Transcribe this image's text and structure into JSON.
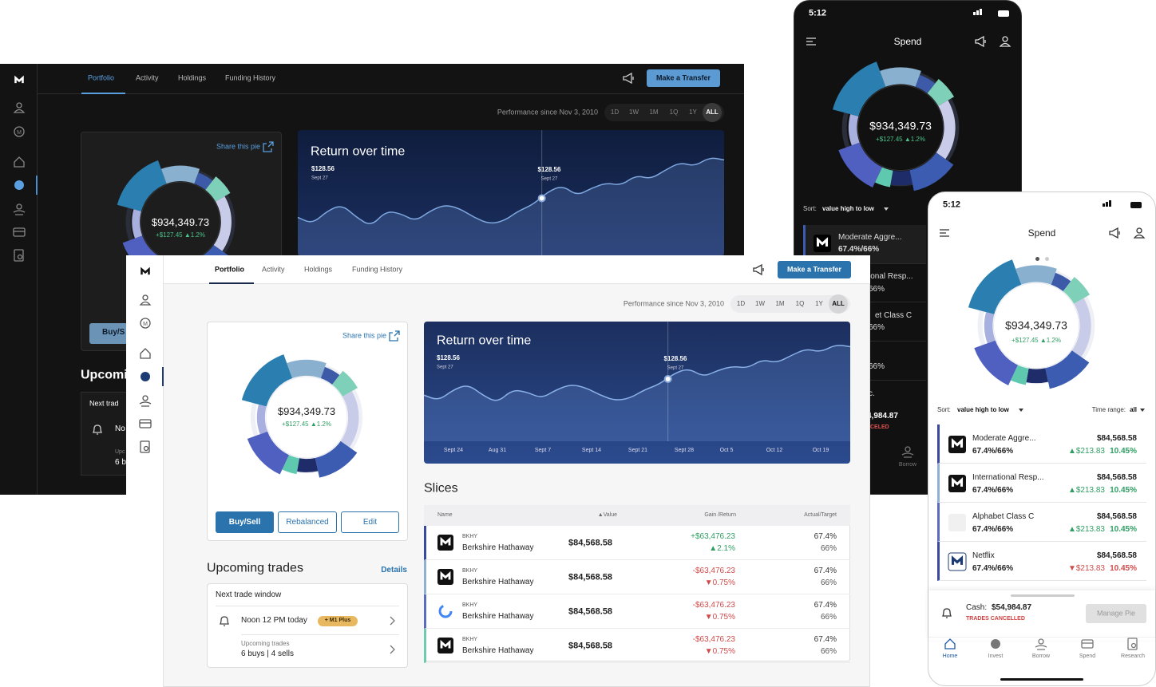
{
  "dark_desktop": {
    "nav": [
      "Portfolio",
      "Activity",
      "Holdings",
      "Funding History"
    ],
    "transfer_button": "Make a Transfer",
    "performance_label": "Performance since Nov 3, 2010",
    "ranges": [
      "1D",
      "1W",
      "1M",
      "1Q",
      "1Y",
      "ALL"
    ],
    "share_link": "Share this pie",
    "balance": "$934,349.73",
    "change": "+$127.45 ▲1.2%",
    "chart_title": "Return over time",
    "chart_points": [
      {
        "value": "$128.56",
        "date": "Sept 27"
      },
      {
        "value": "$128.56",
        "date": "Sept 27"
      }
    ],
    "buy_sell": "Buy/S",
    "upcoming_heading": "Upcomi",
    "trade_card": [
      "Next trad",
      "No",
      "Upc",
      "6 b"
    ]
  },
  "dark_phone": {
    "time": "5:12",
    "title": "Spend",
    "balance": "$934,349.73",
    "change": "+$127.45 ▲1.2%",
    "sort_label": "Sort:",
    "sort_value": "value high to low",
    "first_row": {
      "name": "Moderate Aggre...",
      "ratio": "67.4%/66%"
    },
    "row_fragments": [
      "ional Resp...",
      "66%",
      "et Class C",
      "66%",
      "66%",
      "c."
    ],
    "cash": "4,984.87",
    "cash_status": "CELED",
    "tab": "Borrow"
  },
  "light_desktop": {
    "nav": [
      "Portfolio",
      "Activity",
      "Holdings",
      "Funding History"
    ],
    "transfer_button": "Make a Transfer",
    "performance_label": "Performance since Nov 3, 2010",
    "ranges": [
      "1D",
      "1W",
      "1M",
      "1Q",
      "1Y",
      "ALL"
    ],
    "share_link": "Share this pie",
    "balance": "$934,349.73",
    "change": "+$127.45 ▲1.2%",
    "buttons": [
      "Buy/Sell",
      "Rebalanced",
      "Edit"
    ],
    "upcoming": {
      "title": "Upcoming trades",
      "details": "Details",
      "window": "Next trade window",
      "time": "Noon 12 PM today",
      "badge": "+ M1 Plus",
      "trades_label": "Upcoming trades",
      "trades": "6 buys | 4 sells"
    },
    "chart": {
      "title": "Return over time",
      "points": [
        {
          "value": "$128.56",
          "date": "Sept 27"
        },
        {
          "value": "$128.56",
          "date": "Sept 27"
        }
      ],
      "x_labels": [
        "Sept 24",
        "Aug 31",
        "Sept 7",
        "Sept 14",
        "Sept 21",
        "Sept 28",
        "Oct 5",
        "Oct 12",
        "Oct 19"
      ]
    },
    "slices": {
      "title": "Slices",
      "headers": [
        "Name",
        "▲Value",
        "Gain /Return",
        "Actual/Target"
      ],
      "rows": [
        {
          "ticker": "BKHY",
          "name": "Berkshire Hathaway",
          "value": "$84,568.58",
          "gain": "+$63,476.23",
          "return": "▲2.1%",
          "actual": "67.4%",
          "target": "66%"
        },
        {
          "ticker": "BKHY",
          "name": "Berkshire Hathaway",
          "value": "$84,568.58",
          "gain": "-$63,476.23",
          "return": "▼0.75%",
          "actual": "67.4%",
          "target": "66%"
        },
        {
          "ticker": "BKHY",
          "name": "Berkshire Hathaway",
          "value": "$84,568.58",
          "gain": "-$63,476.23",
          "return": "▼0.75%",
          "actual": "67.4%",
          "target": "66%"
        },
        {
          "ticker": "BKHY",
          "name": "Berkshire Hathaway",
          "value": "$84,568.58",
          "gain": "-$63,476.23",
          "return": "▼0.75%",
          "actual": "67.4%",
          "target": "66%"
        }
      ]
    }
  },
  "light_phone": {
    "time": "5:12",
    "title": "Spend",
    "balance": "$934,349.73",
    "change": "+$127.45 ▲1.2%",
    "sort_label": "Sort:",
    "sort_value": "value high to low",
    "range_label": "Time range:",
    "range_value": "all",
    "rows": [
      {
        "name": "Moderate Aggre...",
        "ratio": "67.4%/66%",
        "value": "$84,568.58",
        "change": "▲$213.83",
        "percent": "10.45%"
      },
      {
        "name": "International Resp...",
        "ratio": "67.4%/66%",
        "value": "$84,568.58",
        "change": "▲$213.83",
        "percent": "10.45%"
      },
      {
        "name": "Alphabet Class C",
        "ratio": "67.4%/66%",
        "value": "$84,568.58",
        "change": "▲$213.83",
        "percent": "10.45%"
      },
      {
        "name": "Netflix",
        "ratio": "67.4%/66%",
        "value": "$84,568.58",
        "change": "▼$213.83",
        "percent": "10.45%"
      }
    ],
    "cash_label": "Cash:",
    "cash": "$54,984.87",
    "cash_status": "TRADES CANCELLED",
    "manage_button": "Manage Pie",
    "tabs": [
      "Home",
      "Invest",
      "Borrow",
      "Spend",
      "Research"
    ]
  }
}
